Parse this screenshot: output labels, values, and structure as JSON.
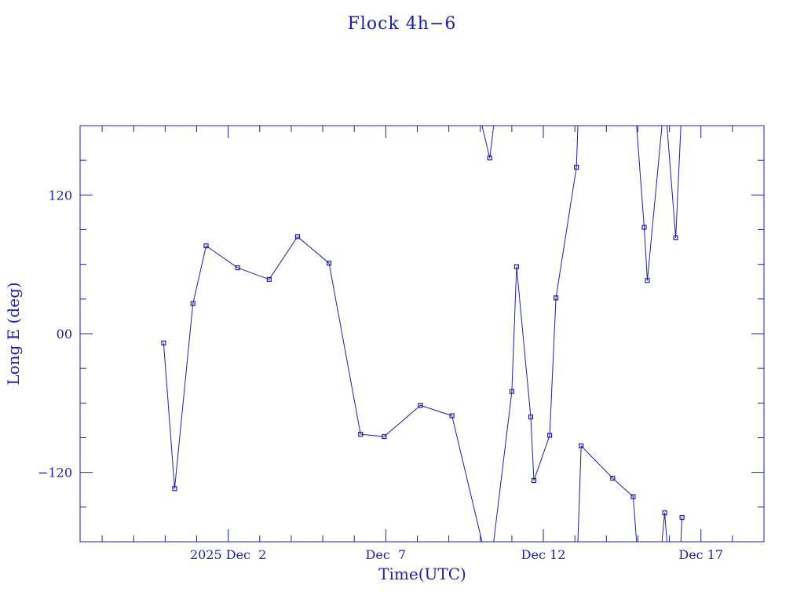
{
  "chart_data": {
    "type": "line",
    "title": "Flock 4h−6",
    "xlabel": "Time(UTC)",
    "ylabel": "Long E (deg)",
    "x_tick_labels": [
      "2025 Dec  2",
      "Dec  7",
      "Dec 12",
      "Dec 17"
    ],
    "x_tick_dates": [
      2.0,
      7.0,
      12.0,
      17.0
    ],
    "xlim": [
      -2.7,
      19.0
    ],
    "y_tick_labels": [
      "−120",
      "00",
      "120"
    ],
    "y_tick_values": [
      -120,
      0,
      120
    ],
    "ylim": [
      -180,
      180
    ],
    "x_unit": "day of December 2025 (UTC)",
    "grid": false,
    "color": "#1f1fa8",
    "points": [
      [
        -0.05,
        -8
      ],
      [
        0.3,
        -134
      ],
      [
        0.88,
        26
      ],
      [
        1.3,
        76
      ],
      [
        2.3,
        57
      ],
      [
        3.3,
        47
      ],
      [
        4.2,
        84
      ],
      [
        5.2,
        61
      ],
      [
        6.2,
        -87
      ],
      [
        6.95,
        -89
      ],
      [
        8.1,
        -62
      ],
      [
        9.1,
        -71
      ],
      [
        10.3,
        152
      ],
      [
        11.0,
        -50
      ],
      [
        11.15,
        58
      ],
      [
        11.6,
        -72
      ],
      [
        11.7,
        -127
      ],
      [
        12.2,
        -88
      ],
      [
        12.4,
        31
      ],
      [
        13.05,
        144
      ],
      [
        13.2,
        -97
      ],
      [
        14.2,
        -125
      ],
      [
        14.85,
        -141
      ],
      [
        15.2,
        92
      ],
      [
        15.3,
        46
      ],
      [
        15.85,
        -155
      ],
      [
        16.2,
        83
      ],
      [
        16.4,
        -159
      ]
    ],
    "segments_wrap": [
      {
        "from": [
          9.1,
          -71
        ],
        "to": [
          10.3,
          152
        ],
        "note": "wraps through -180/+180"
      },
      {
        "from": [
          10.3,
          152
        ],
        "to": [
          11.0,
          -50
        ],
        "note": "wraps through +180/-180"
      },
      {
        "from": [
          13.05,
          144
        ],
        "to": [
          13.2,
          -97
        ],
        "note": "wraps through +180/-180"
      },
      {
        "from": [
          14.85,
          -141
        ],
        "to": [
          15.2,
          92
        ],
        "note": "wraps through -180/+180"
      },
      {
        "from": [
          15.3,
          46
        ],
        "to": [
          15.85,
          -155
        ],
        "note": "wraps through +180/-180"
      },
      {
        "from": [
          15.85,
          -155
        ],
        "to": [
          16.2,
          83
        ],
        "note": "wraps through -180/+180"
      },
      {
        "from": [
          16.2,
          83
        ],
        "to": [
          16.4,
          -159
        ],
        "note": "wraps through +180/-180"
      }
    ]
  }
}
